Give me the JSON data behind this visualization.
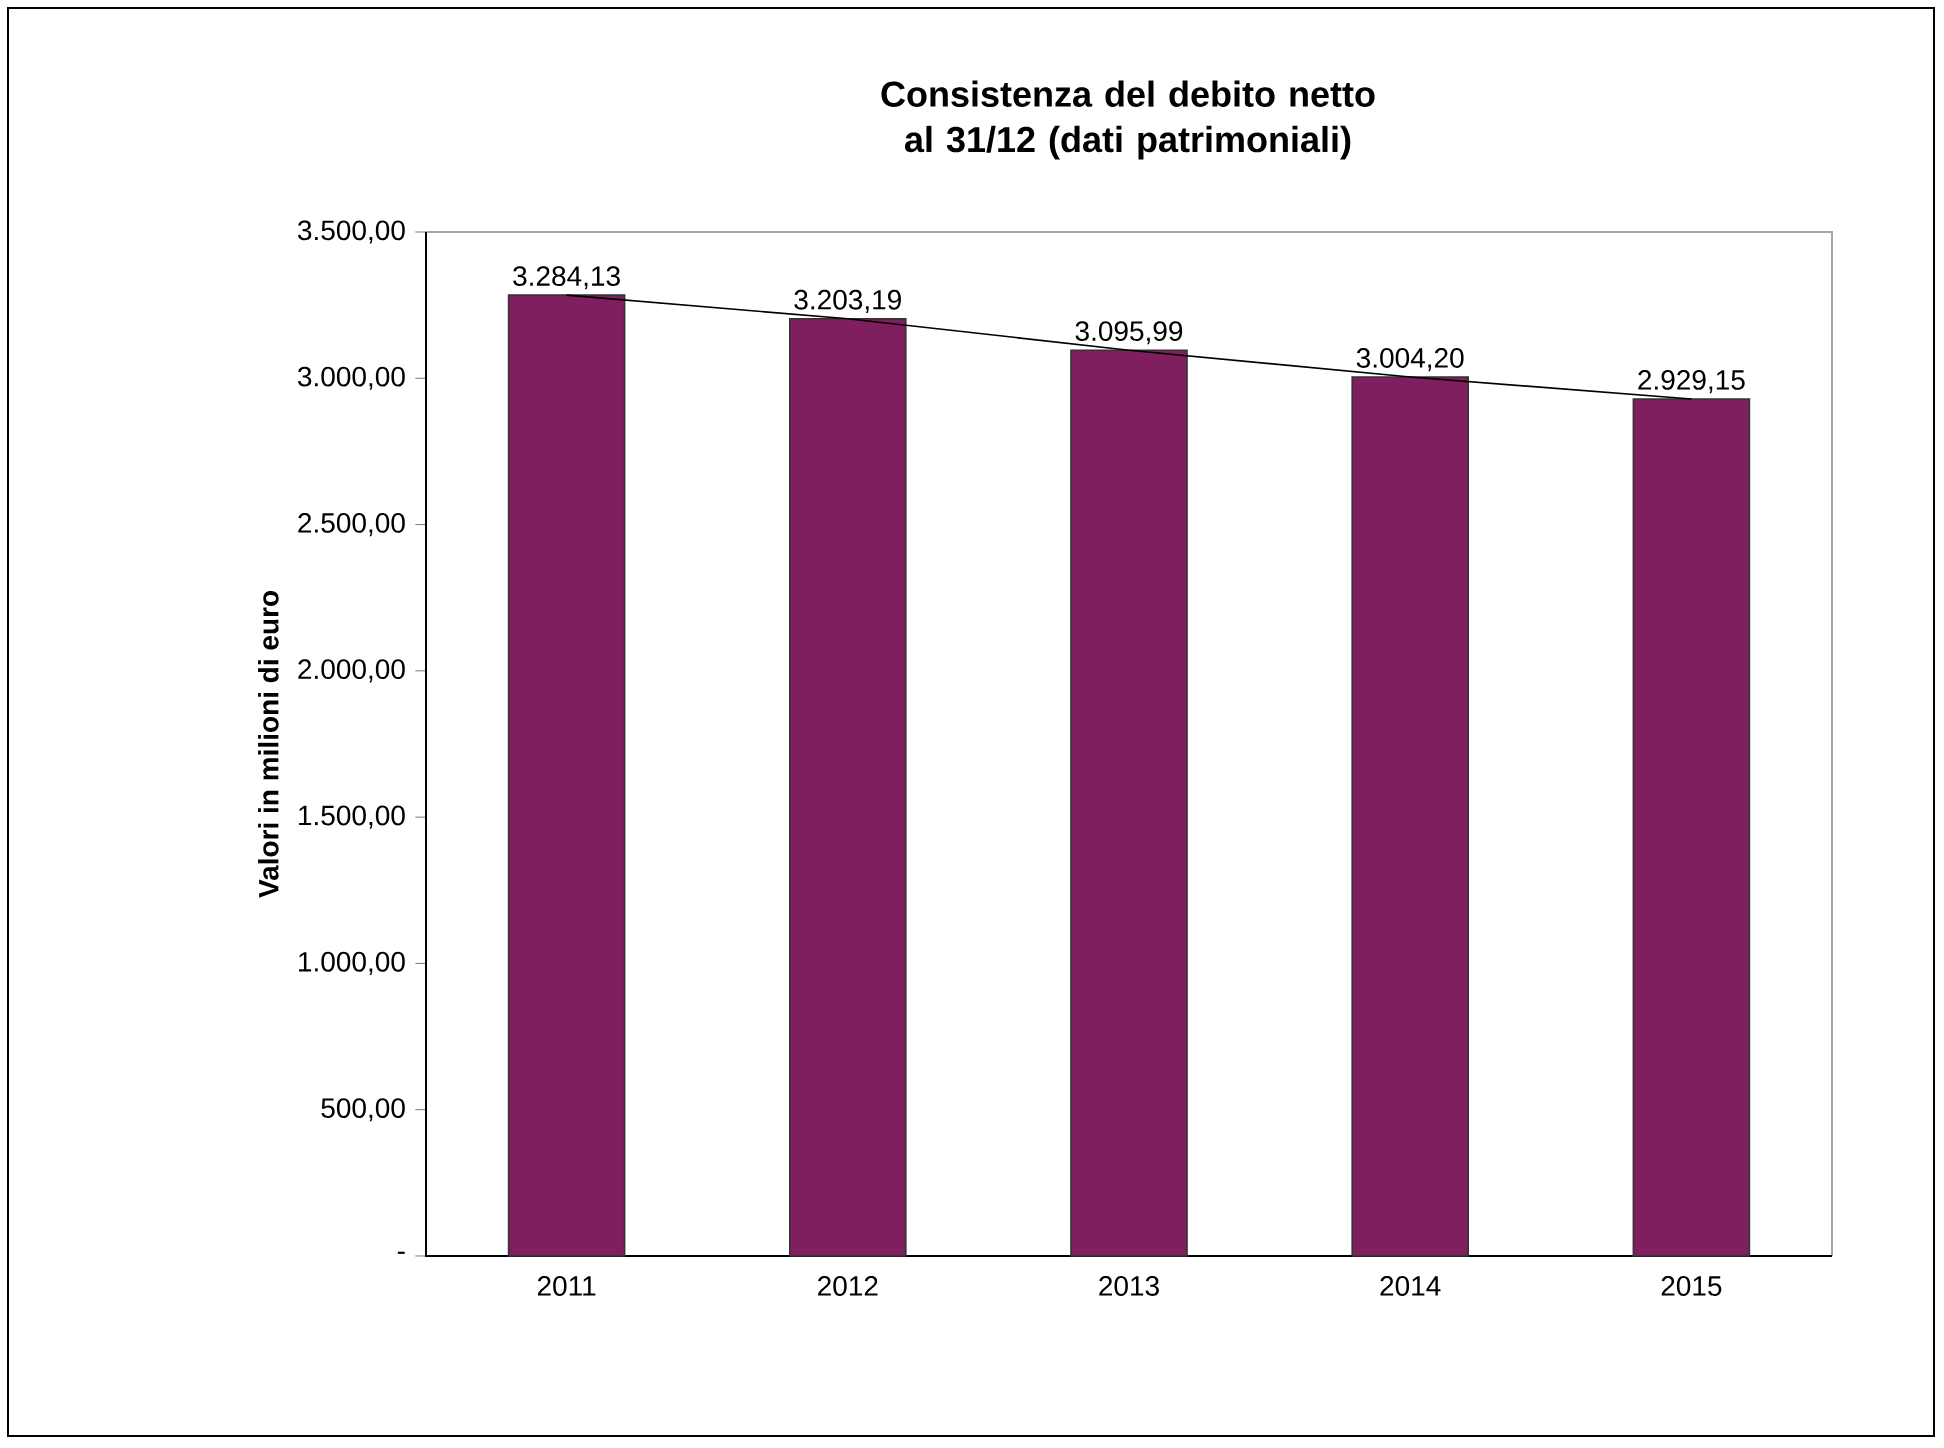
{
  "chart_data": {
    "type": "bar",
    "title": "Consistenza del debito netto al 31/12 (dati patrimoniali)",
    "ylabel": "Valori in milioni di euro",
    "categories": [
      "2011",
      "2012",
      "2013",
      "2014",
      "2015"
    ],
    "series": [
      {
        "color": "#7f1f5f",
        "values": [
          3284.13,
          3203.19,
          3095.99,
          3004.2,
          2929.15
        ],
        "value_labels": [
          "3.284,13",
          "3.203,19",
          "3.095,99",
          "3.004,20",
          "2.929,15"
        ]
      },
      {
        "type": "line",
        "color": "#000000",
        "marker": "none",
        "line_style": "solid",
        "values": [
          3284.13,
          3203.19,
          3095.99,
          3004.2,
          2929.15
        ]
      }
    ],
    "ylim": [
      0,
      3500
    ],
    "yticks": [
      {
        "value": 0,
        "label": "-"
      },
      {
        "value": 500,
        "label": "500,00"
      },
      {
        "value": 1000,
        "label": "1.000,00"
      },
      {
        "value": 1500,
        "label": "1.500,00"
      },
      {
        "value": 2000,
        "label": "2.000,00"
      },
      {
        "value": 2500,
        "label": "2.500,00"
      },
      {
        "value": 3000,
        "label": "3.000,00"
      },
      {
        "value": 3500,
        "label": "3.500,00"
      }
    ],
    "grid": false
  }
}
